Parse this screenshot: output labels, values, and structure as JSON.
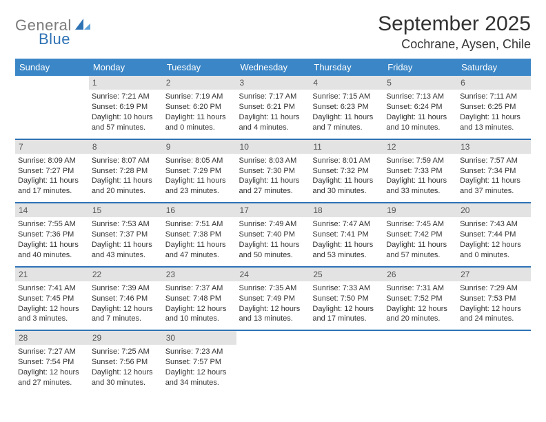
{
  "brand": {
    "part1": "General",
    "part2": "Blue"
  },
  "title": {
    "month": "September 2025",
    "location": "Cochrane, Aysen, Chile"
  },
  "colors": {
    "header_bg": "#3b86c6",
    "divider": "#2e72b4",
    "daynum_bg": "#e3e3e3",
    "text": "#333333",
    "logo_gray": "#7a7a7a",
    "logo_blue": "#2e72b4",
    "page_bg": "#ffffff"
  },
  "typography": {
    "month_fontsize": 30,
    "location_fontsize": 18,
    "weekday_fontsize": 13,
    "daynum_fontsize": 12,
    "cell_fontsize": 11
  },
  "weekdays": [
    "Sunday",
    "Monday",
    "Tuesday",
    "Wednesday",
    "Thursday",
    "Friday",
    "Saturday"
  ],
  "weeks": [
    [
      {
        "blank": true
      },
      {
        "day": "1",
        "sunrise": "Sunrise: 7:21 AM",
        "sunset": "Sunset: 6:19 PM",
        "daylight1": "Daylight: 10 hours",
        "daylight2": "and 57 minutes."
      },
      {
        "day": "2",
        "sunrise": "Sunrise: 7:19 AM",
        "sunset": "Sunset: 6:20 PM",
        "daylight1": "Daylight: 11 hours",
        "daylight2": "and 0 minutes."
      },
      {
        "day": "3",
        "sunrise": "Sunrise: 7:17 AM",
        "sunset": "Sunset: 6:21 PM",
        "daylight1": "Daylight: 11 hours",
        "daylight2": "and 4 minutes."
      },
      {
        "day": "4",
        "sunrise": "Sunrise: 7:15 AM",
        "sunset": "Sunset: 6:23 PM",
        "daylight1": "Daylight: 11 hours",
        "daylight2": "and 7 minutes."
      },
      {
        "day": "5",
        "sunrise": "Sunrise: 7:13 AM",
        "sunset": "Sunset: 6:24 PM",
        "daylight1": "Daylight: 11 hours",
        "daylight2": "and 10 minutes."
      },
      {
        "day": "6",
        "sunrise": "Sunrise: 7:11 AM",
        "sunset": "Sunset: 6:25 PM",
        "daylight1": "Daylight: 11 hours",
        "daylight2": "and 13 minutes."
      }
    ],
    [
      {
        "day": "7",
        "sunrise": "Sunrise: 8:09 AM",
        "sunset": "Sunset: 7:27 PM",
        "daylight1": "Daylight: 11 hours",
        "daylight2": "and 17 minutes."
      },
      {
        "day": "8",
        "sunrise": "Sunrise: 8:07 AM",
        "sunset": "Sunset: 7:28 PM",
        "daylight1": "Daylight: 11 hours",
        "daylight2": "and 20 minutes."
      },
      {
        "day": "9",
        "sunrise": "Sunrise: 8:05 AM",
        "sunset": "Sunset: 7:29 PM",
        "daylight1": "Daylight: 11 hours",
        "daylight2": "and 23 minutes."
      },
      {
        "day": "10",
        "sunrise": "Sunrise: 8:03 AM",
        "sunset": "Sunset: 7:30 PM",
        "daylight1": "Daylight: 11 hours",
        "daylight2": "and 27 minutes."
      },
      {
        "day": "11",
        "sunrise": "Sunrise: 8:01 AM",
        "sunset": "Sunset: 7:32 PM",
        "daylight1": "Daylight: 11 hours",
        "daylight2": "and 30 minutes."
      },
      {
        "day": "12",
        "sunrise": "Sunrise: 7:59 AM",
        "sunset": "Sunset: 7:33 PM",
        "daylight1": "Daylight: 11 hours",
        "daylight2": "and 33 minutes."
      },
      {
        "day": "13",
        "sunrise": "Sunrise: 7:57 AM",
        "sunset": "Sunset: 7:34 PM",
        "daylight1": "Daylight: 11 hours",
        "daylight2": "and 37 minutes."
      }
    ],
    [
      {
        "day": "14",
        "sunrise": "Sunrise: 7:55 AM",
        "sunset": "Sunset: 7:36 PM",
        "daylight1": "Daylight: 11 hours",
        "daylight2": "and 40 minutes."
      },
      {
        "day": "15",
        "sunrise": "Sunrise: 7:53 AM",
        "sunset": "Sunset: 7:37 PM",
        "daylight1": "Daylight: 11 hours",
        "daylight2": "and 43 minutes."
      },
      {
        "day": "16",
        "sunrise": "Sunrise: 7:51 AM",
        "sunset": "Sunset: 7:38 PM",
        "daylight1": "Daylight: 11 hours",
        "daylight2": "and 47 minutes."
      },
      {
        "day": "17",
        "sunrise": "Sunrise: 7:49 AM",
        "sunset": "Sunset: 7:40 PM",
        "daylight1": "Daylight: 11 hours",
        "daylight2": "and 50 minutes."
      },
      {
        "day": "18",
        "sunrise": "Sunrise: 7:47 AM",
        "sunset": "Sunset: 7:41 PM",
        "daylight1": "Daylight: 11 hours",
        "daylight2": "and 53 minutes."
      },
      {
        "day": "19",
        "sunrise": "Sunrise: 7:45 AM",
        "sunset": "Sunset: 7:42 PM",
        "daylight1": "Daylight: 11 hours",
        "daylight2": "and 57 minutes."
      },
      {
        "day": "20",
        "sunrise": "Sunrise: 7:43 AM",
        "sunset": "Sunset: 7:44 PM",
        "daylight1": "Daylight: 12 hours",
        "daylight2": "and 0 minutes."
      }
    ],
    [
      {
        "day": "21",
        "sunrise": "Sunrise: 7:41 AM",
        "sunset": "Sunset: 7:45 PM",
        "daylight1": "Daylight: 12 hours",
        "daylight2": "and 3 minutes."
      },
      {
        "day": "22",
        "sunrise": "Sunrise: 7:39 AM",
        "sunset": "Sunset: 7:46 PM",
        "daylight1": "Daylight: 12 hours",
        "daylight2": "and 7 minutes."
      },
      {
        "day": "23",
        "sunrise": "Sunrise: 7:37 AM",
        "sunset": "Sunset: 7:48 PM",
        "daylight1": "Daylight: 12 hours",
        "daylight2": "and 10 minutes."
      },
      {
        "day": "24",
        "sunrise": "Sunrise: 7:35 AM",
        "sunset": "Sunset: 7:49 PM",
        "daylight1": "Daylight: 12 hours",
        "daylight2": "and 13 minutes."
      },
      {
        "day": "25",
        "sunrise": "Sunrise: 7:33 AM",
        "sunset": "Sunset: 7:50 PM",
        "daylight1": "Daylight: 12 hours",
        "daylight2": "and 17 minutes."
      },
      {
        "day": "26",
        "sunrise": "Sunrise: 7:31 AM",
        "sunset": "Sunset: 7:52 PM",
        "daylight1": "Daylight: 12 hours",
        "daylight2": "and 20 minutes."
      },
      {
        "day": "27",
        "sunrise": "Sunrise: 7:29 AM",
        "sunset": "Sunset: 7:53 PM",
        "daylight1": "Daylight: 12 hours",
        "daylight2": "and 24 minutes."
      }
    ],
    [
      {
        "day": "28",
        "sunrise": "Sunrise: 7:27 AM",
        "sunset": "Sunset: 7:54 PM",
        "daylight1": "Daylight: 12 hours",
        "daylight2": "and 27 minutes."
      },
      {
        "day": "29",
        "sunrise": "Sunrise: 7:25 AM",
        "sunset": "Sunset: 7:56 PM",
        "daylight1": "Daylight: 12 hours",
        "daylight2": "and 30 minutes."
      },
      {
        "day": "30",
        "sunrise": "Sunrise: 7:23 AM",
        "sunset": "Sunset: 7:57 PM",
        "daylight1": "Daylight: 12 hours",
        "daylight2": "and 34 minutes."
      },
      {
        "blank": true
      },
      {
        "blank": true
      },
      {
        "blank": true
      },
      {
        "blank": true
      }
    ]
  ]
}
